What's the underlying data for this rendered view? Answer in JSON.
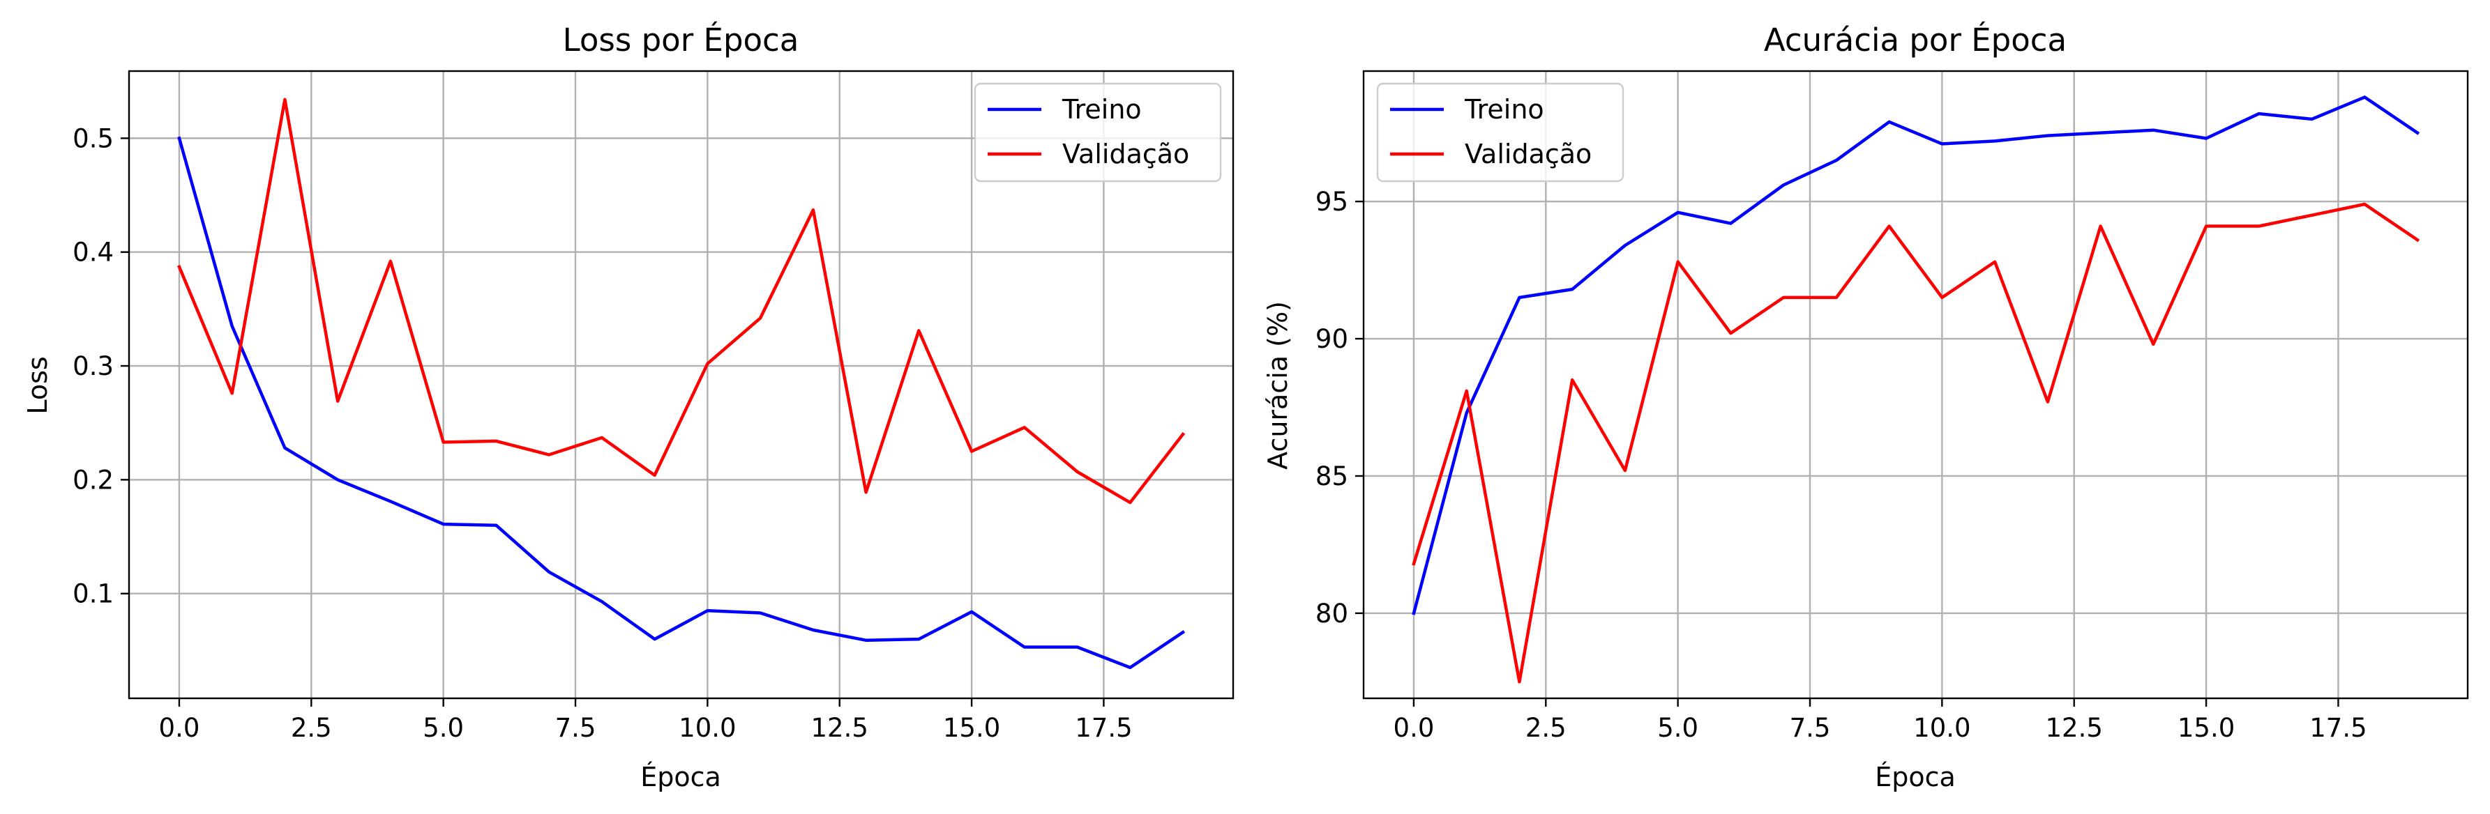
{
  "figure": {
    "background": "#ffffff"
  },
  "chart_data": [
    {
      "type": "line",
      "title": "Loss por Época",
      "xlabel": "Época",
      "ylabel": "Loss",
      "xlim": [
        -0.95,
        19.95
      ],
      "ylim": [
        0.008,
        0.559
      ],
      "xticks": [
        0.0,
        2.5,
        5.0,
        7.5,
        10.0,
        12.5,
        15.0,
        17.5
      ],
      "xtick_labels": [
        "0.0",
        "2.5",
        "5.0",
        "7.5",
        "10.0",
        "12.5",
        "15.0",
        "17.5"
      ],
      "yticks": [
        0.1,
        0.2,
        0.3,
        0.4,
        0.5
      ],
      "ytick_labels": [
        "0.1",
        "0.2",
        "0.3",
        "0.4",
        "0.5"
      ],
      "grid": true,
      "legend": {
        "position": "upper right"
      },
      "x": [
        0,
        1,
        2,
        3,
        4,
        5,
        6,
        7,
        8,
        9,
        10,
        11,
        12,
        13,
        14,
        15,
        16,
        17,
        18,
        19
      ],
      "series": [
        {
          "name": "Treino",
          "color": "#0000ff",
          "values": [
            0.5,
            0.335,
            0.228,
            0.2,
            0.181,
            0.161,
            0.16,
            0.119,
            0.093,
            0.06,
            0.085,
            0.083,
            0.068,
            0.059,
            0.06,
            0.084,
            0.053,
            0.053,
            0.035,
            0.066
          ]
        },
        {
          "name": "Validação",
          "color": "#ff0000",
          "values": [
            0.387,
            0.276,
            0.534,
            0.269,
            0.392,
            0.233,
            0.234,
            0.222,
            0.237,
            0.204,
            0.302,
            0.342,
            0.437,
            0.189,
            0.331,
            0.225,
            0.246,
            0.207,
            0.18,
            0.24
          ]
        }
      ]
    },
    {
      "type": "line",
      "title": "Acurácia por Época",
      "xlabel": "Época",
      "ylabel": "Acurácia (%)",
      "xlim": [
        -0.95,
        19.95
      ],
      "ylim": [
        76.9,
        99.75
      ],
      "xticks": [
        0.0,
        2.5,
        5.0,
        7.5,
        10.0,
        12.5,
        15.0,
        17.5
      ],
      "xtick_labels": [
        "0.0",
        "2.5",
        "5.0",
        "7.5",
        "10.0",
        "12.5",
        "15.0",
        "17.5"
      ],
      "yticks": [
        80,
        85,
        90,
        95
      ],
      "ytick_labels": [
        "80",
        "85",
        "90",
        "95"
      ],
      "grid": true,
      "legend": {
        "position": "upper left"
      },
      "x": [
        0,
        1,
        2,
        3,
        4,
        5,
        6,
        7,
        8,
        9,
        10,
        11,
        12,
        13,
        14,
        15,
        16,
        17,
        18,
        19
      ],
      "series": [
        {
          "name": "Treino",
          "color": "#0000ff",
          "values": [
            80.0,
            87.3,
            91.5,
            91.8,
            93.4,
            94.6,
            94.2,
            95.6,
            96.5,
            97.9,
            97.1,
            97.2,
            97.4,
            97.5,
            97.6,
            97.3,
            98.2,
            98.0,
            98.8,
            97.5
          ]
        },
        {
          "name": "Validação",
          "color": "#ff0000",
          "values": [
            81.8,
            88.1,
            77.5,
            88.5,
            85.2,
            92.8,
            90.2,
            91.5,
            91.5,
            94.1,
            91.5,
            92.8,
            87.7,
            94.1,
            89.8,
            94.1,
            94.1,
            94.5,
            94.9,
            93.6
          ]
        }
      ]
    }
  ]
}
